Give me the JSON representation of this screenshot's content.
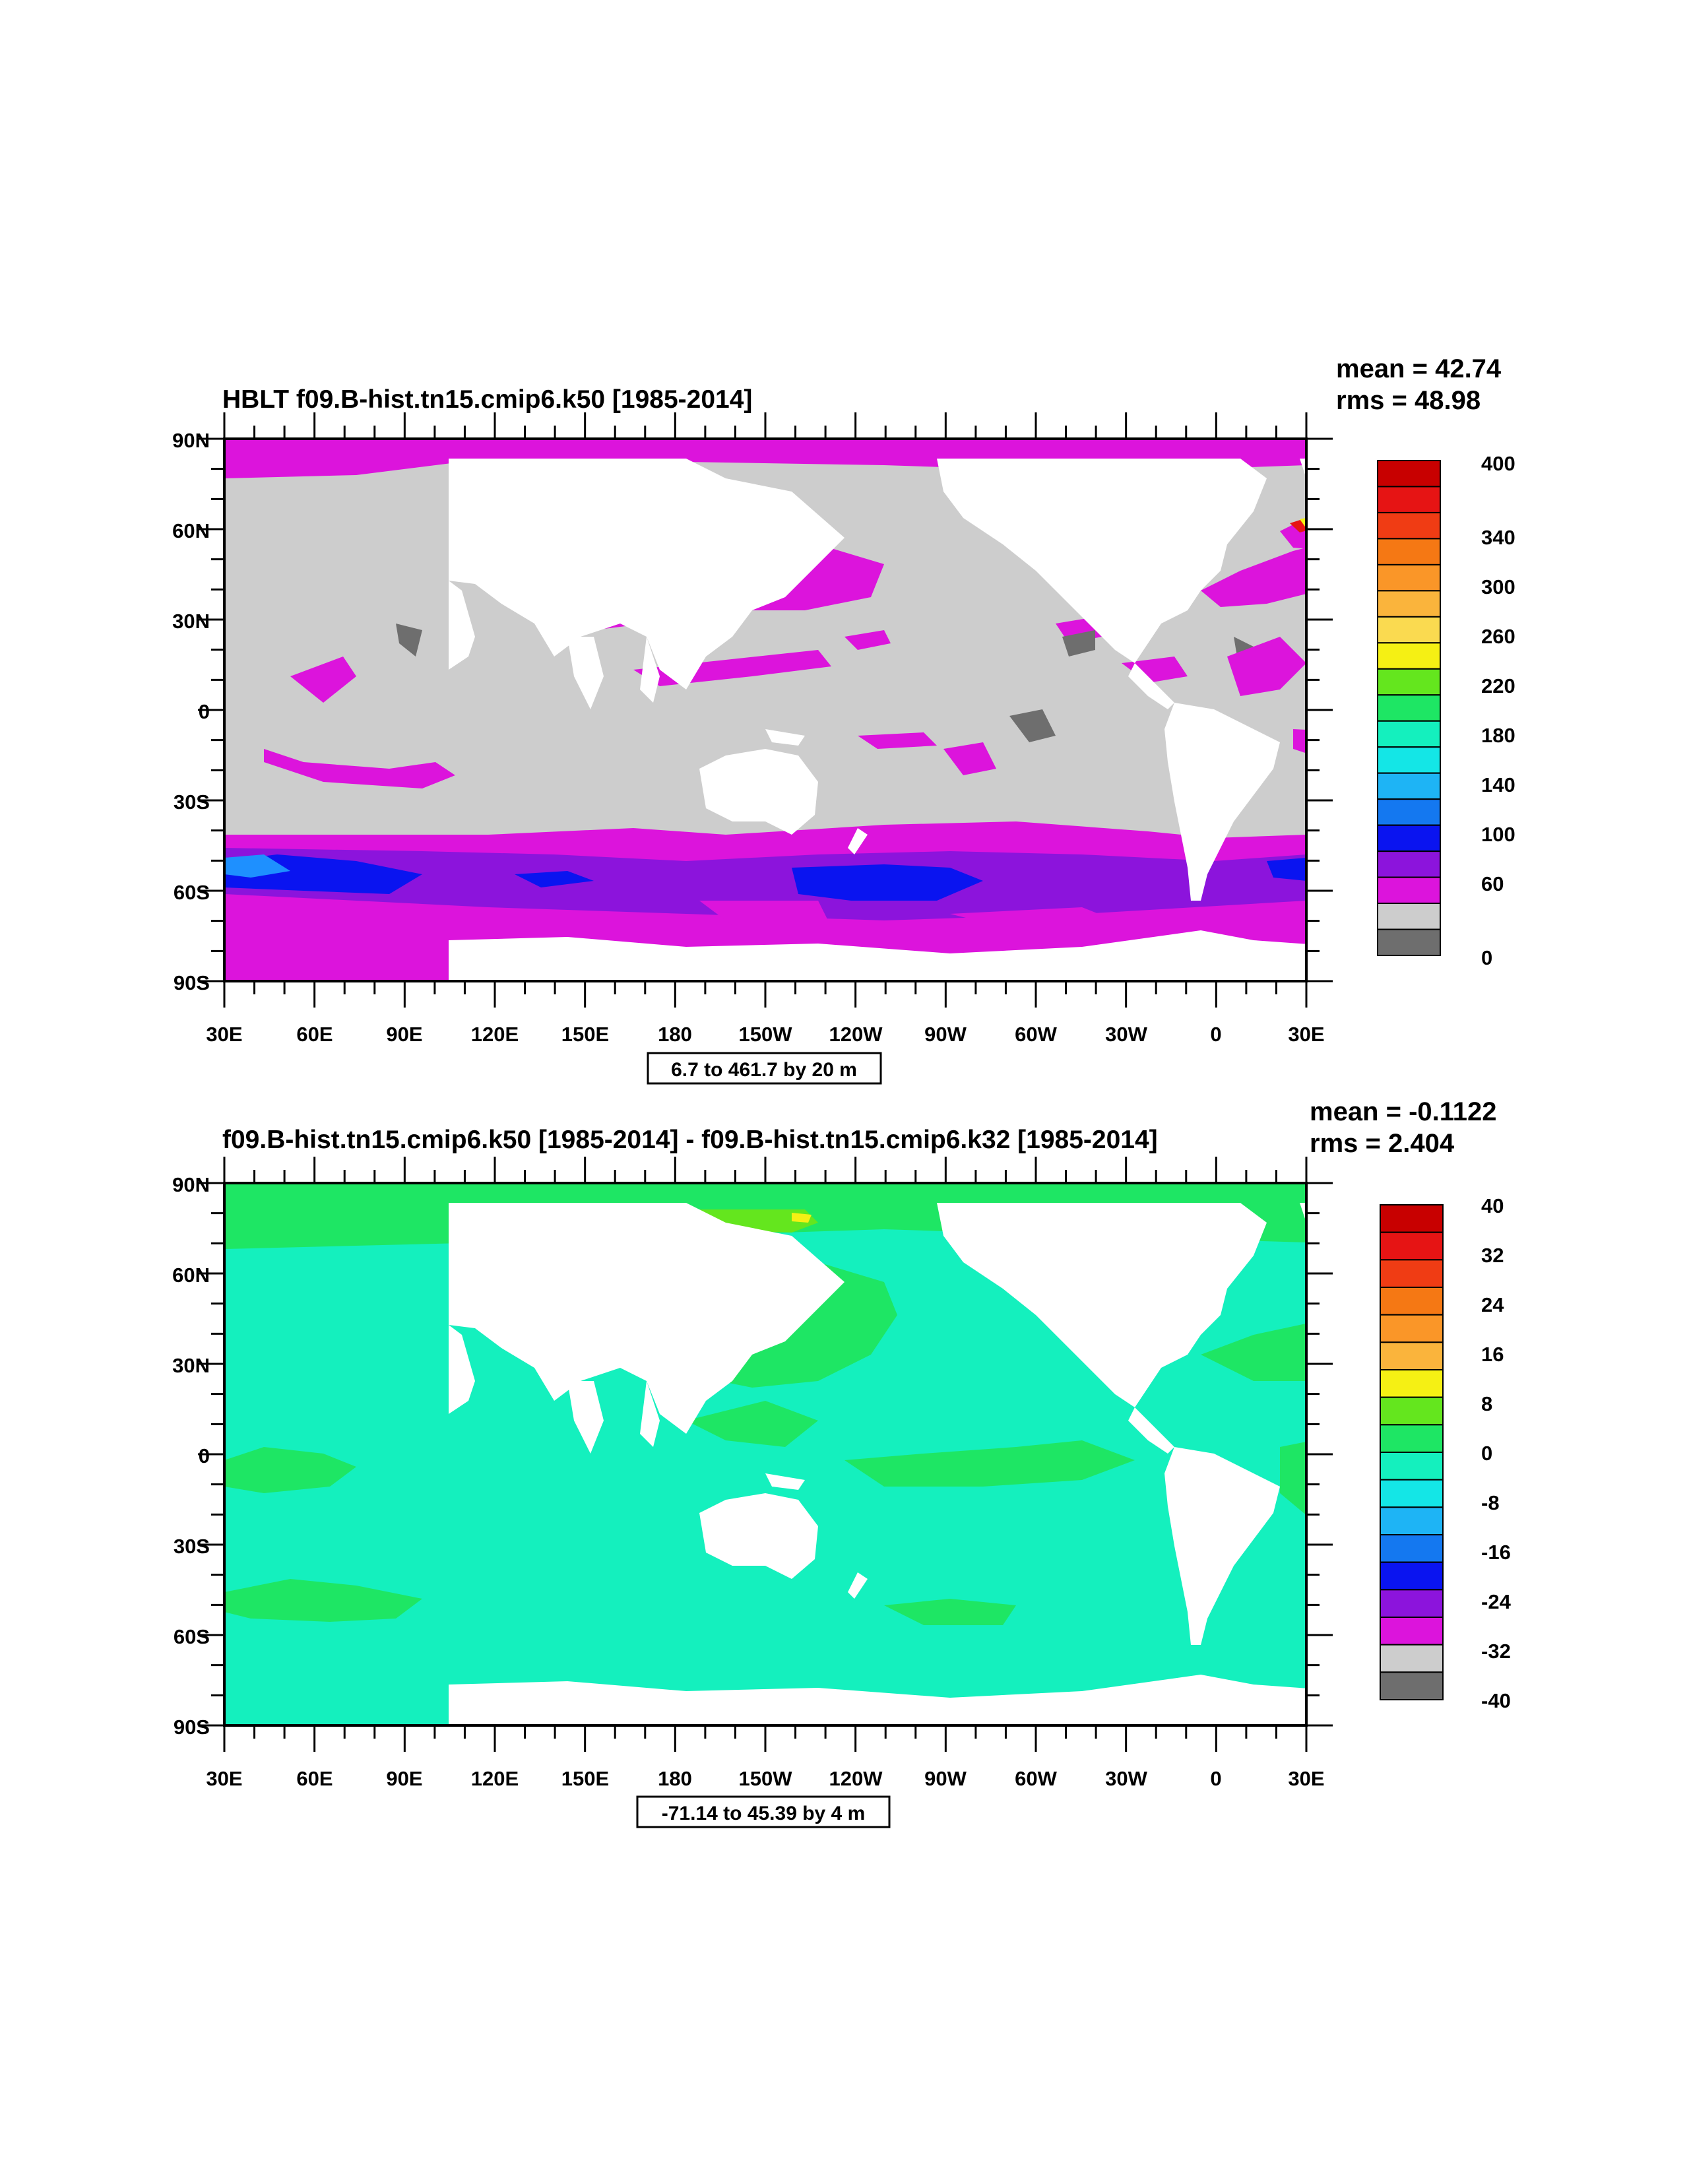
{
  "colors": {
    "land": "#ffffff",
    "frame": "#000000"
  },
  "lon_ticks": [
    "30E",
    "60E",
    "90E",
    "120E",
    "150E",
    "180",
    "150W",
    "120W",
    "90W",
    "60W",
    "30W",
    "0",
    "30E"
  ],
  "lat_ticks": [
    "90N",
    "60N",
    "30N",
    "0",
    "30S",
    "60S",
    "90S"
  ],
  "panels": [
    {
      "id": "hblt",
      "title": "HBLT f09.B-hist.tn15.cmip6.k50 [1985-2014]",
      "mean_text": "mean = 42.74",
      "rms_text": "rms = 48.98",
      "range_text": "6.7 to 461.7 by 20 m",
      "colorbar": {
        "labels": [
          "400",
          "340",
          "300",
          "260",
          "220",
          "180",
          "140",
          "100",
          "60",
          "0"
        ],
        "colors_top_to_bottom": [
          "#c80000",
          "#e61414",
          "#f03c14",
          "#f57814",
          "#fa9628",
          "#fab43c",
          "#fada50",
          "#f5f014",
          "#64e61e",
          "#1ee664",
          "#14f0be",
          "#14e6e6",
          "#1eb4f5",
          "#1478f0",
          "#0a14f0",
          "#8c14dc",
          "#dc14dc",
          "#cdcdcd",
          "#6e6e6e"
        ]
      },
      "map_colors": {
        "base": "#cdcdcd",
        "low": "#6e6e6e",
        "mag": "#dc14dc",
        "purple": "#8c14dc",
        "blue": "#0a14f0",
        "lblue": "#1e90ff",
        "cyan": "#14e6e6",
        "green": "#1ee664",
        "yellow": "#f5f014",
        "orange": "#fa9628",
        "red": "#e61414"
      }
    },
    {
      "id": "diff",
      "title": "f09.B-hist.tn15.cmip6.k50 [1985-2014] - f09.B-hist.tn15.cmip6.k32 [1985-2014]",
      "mean_text": "mean = -0.1122",
      "rms_text": "rms = 2.404",
      "range_text": "-71.14 to 45.39 by 4 m",
      "colorbar": {
        "labels": [
          "40",
          "32",
          "24",
          "16",
          "8",
          "0",
          "-8",
          "-16",
          "-24",
          "-32",
          "-40"
        ],
        "colors_top_to_bottom": [
          "#c80000",
          "#e61414",
          "#f03c14",
          "#f57814",
          "#fa9628",
          "#fab43c",
          "#f5f014",
          "#64e61e",
          "#1ee664",
          "#14f0be",
          "#14e6e6",
          "#1eb4f5",
          "#1478f0",
          "#0a14f0",
          "#8c14dc",
          "#dc14dc",
          "#cdcdcd",
          "#6e6e6e"
        ]
      },
      "map_colors": {
        "base": "#14f0be",
        "green": "#1ee664",
        "lgreen": "#64e61e",
        "yellow": "#f5f014",
        "orange": "#fa9628",
        "red": "#e61414",
        "blue": "#0a14f0",
        "cyan": "#14e6e6"
      }
    }
  ]
}
